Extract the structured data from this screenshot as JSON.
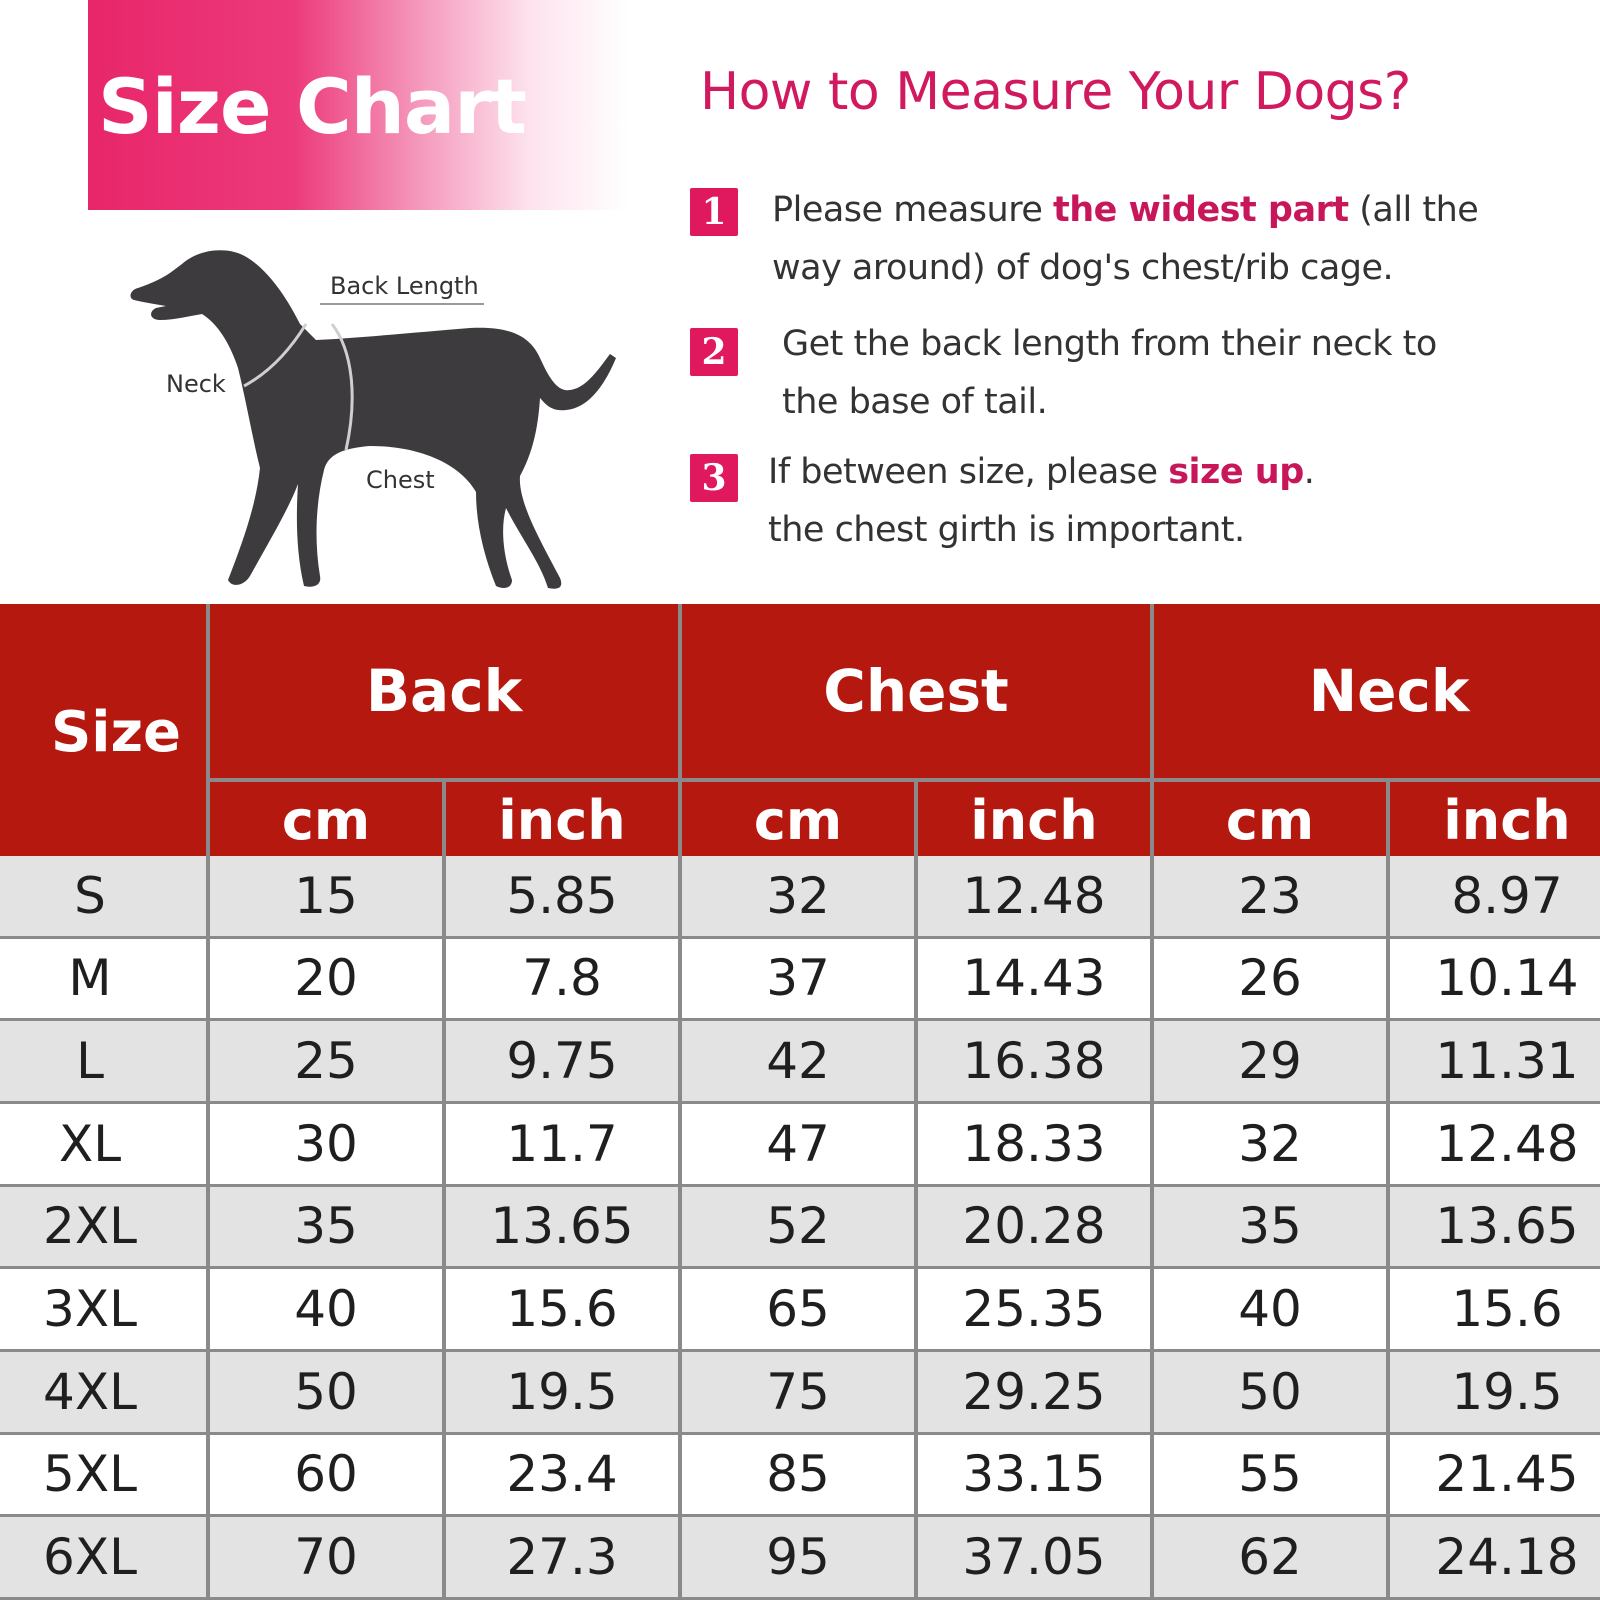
{
  "banner": {
    "title": "Size Chart"
  },
  "diagram": {
    "labels": {
      "back_length": "Back Length",
      "neck": "Neck",
      "chest": "Chest"
    }
  },
  "instructions": {
    "heading": "How to Measure Your Dogs?",
    "steps": [
      {
        "number": "1",
        "line1_pre": "Please measure ",
        "line1_highlight": "the widest part",
        "line1_post": " (all the",
        "line2": "way around) of dog's chest/rib cage."
      },
      {
        "number": "2",
        "line1": "Get the back length from their neck to",
        "line2": "the base of tail."
      },
      {
        "number": "3",
        "line1_pre": "If between size, please ",
        "line1_highlight": "size up",
        "line1_post": ".",
        "line2": "the chest girth is  important."
      }
    ]
  },
  "colors": {
    "accent_pink": "#e0185e",
    "header_red": "#b5180e",
    "row_gray": "#e3e3e3"
  },
  "table": {
    "size_header": "Size",
    "groups": [
      "Back",
      "Chest",
      "Neck"
    ],
    "units": [
      "cm",
      "inch",
      "cm",
      "inch",
      "cm",
      "inch"
    ],
    "rows": [
      [
        "S",
        "15",
        "5.85",
        "32",
        "12.48",
        "23",
        "8.97"
      ],
      [
        "M",
        "20",
        "7.8",
        "37",
        "14.43",
        "26",
        "10.14"
      ],
      [
        "L",
        "25",
        "9.75",
        "42",
        "16.38",
        "29",
        "11.31"
      ],
      [
        "XL",
        "30",
        "11.7",
        "47",
        "18.33",
        "32",
        "12.48"
      ],
      [
        "2XL",
        "35",
        "13.65",
        "52",
        "20.28",
        "35",
        "13.65"
      ],
      [
        "3XL",
        "40",
        "15.6",
        "65",
        "25.35",
        "40",
        "15.6"
      ],
      [
        "4XL",
        "50",
        "19.5",
        "75",
        "29.25",
        "50",
        "19.5"
      ],
      [
        "5XL",
        "60",
        "23.4",
        "85",
        "33.15",
        "55",
        "21.45"
      ],
      [
        "6XL",
        "70",
        "27.3",
        "95",
        "37.05",
        "62",
        "24.18"
      ]
    ]
  }
}
